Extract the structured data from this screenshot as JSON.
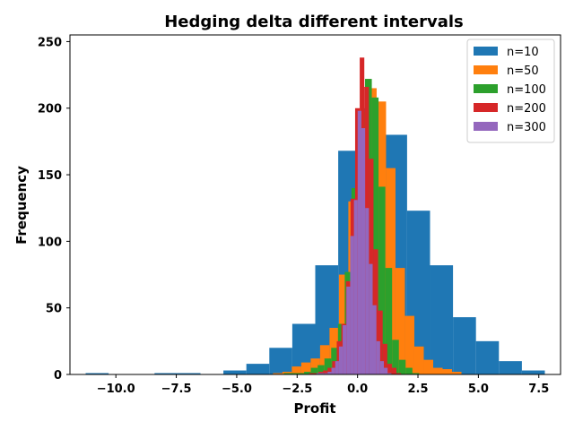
{
  "chart_data": {
    "type": "bar",
    "title": "Hedging delta different intervals",
    "xlabel": "Profit",
    "ylabel": "Frequency",
    "xlim": [
      -11.9,
      8.4
    ],
    "ylim": [
      0,
      255
    ],
    "xticks": [
      -10.0,
      -7.5,
      -5.0,
      -2.5,
      0.0,
      2.5,
      5.0,
      7.5
    ],
    "xtick_labels": [
      "−10.0",
      "−7.5",
      "−5.0",
      "−2.5",
      "0.0",
      "2.5",
      "5.0",
      "7.5"
    ],
    "yticks": [
      0,
      50,
      100,
      150,
      200,
      250
    ],
    "ytick_labels": [
      "0",
      "50",
      "100",
      "150",
      "200",
      "250"
    ],
    "grid": false,
    "legend_position": "top-right",
    "series": [
      {
        "name": "n=10",
        "color": "#1f77b4",
        "bin_start": -11.25,
        "bin_width": 0.95,
        "counts": [
          1,
          0,
          0,
          1,
          1,
          0,
          3,
          8,
          20,
          38,
          82,
          168,
          200,
          180,
          123,
          82,
          43,
          25,
          10,
          3
        ]
      },
      {
        "name": "n=50",
        "color": "#ff7f0e",
        "bin_start": -3.5,
        "bin_width": 0.39,
        "counts": [
          1,
          2,
          6,
          9,
          12,
          22,
          35,
          75,
          130,
          196,
          215,
          205,
          155,
          80,
          44,
          21,
          11,
          5,
          4,
          2
        ]
      },
      {
        "name": "n=100",
        "color": "#2ca02c",
        "bin_start": -3.05,
        "bin_width": 0.28,
        "counts": [
          1,
          1,
          1,
          2,
          5,
          7,
          12,
          20,
          38,
          77,
          140,
          197,
          222,
          208,
          141,
          80,
          26,
          11,
          5,
          1
        ]
      },
      {
        "name": "n=200",
        "color": "#d62728",
        "bin_start": -2.0,
        "bin_width": 0.19,
        "counts": [
          1,
          1,
          2,
          3,
          5,
          10,
          25,
          38,
          70,
          132,
          200,
          238,
          216,
          162,
          94,
          48,
          23,
          8,
          5,
          1
        ]
      },
      {
        "name": "n=300",
        "color": "#9467bd",
        "bin_start": -1.7,
        "bin_width": 0.155,
        "counts": [
          1,
          1,
          1,
          2,
          5,
          10,
          21,
          37,
          66,
          104,
          131,
          198,
          185,
          125,
          83,
          52,
          25,
          10,
          5,
          1
        ]
      }
    ]
  }
}
